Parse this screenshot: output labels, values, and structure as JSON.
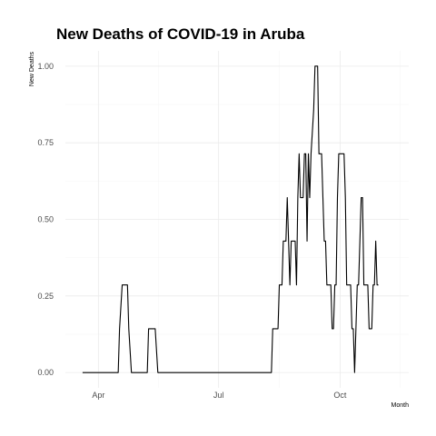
{
  "chart_data": {
    "type": "line",
    "title": "New Deaths of COVID-19 in Aruba",
    "xlabel": "Month",
    "ylabel": "New Deaths",
    "grid": true,
    "legend": "none",
    "line_color": "#000000",
    "xlim": [
      "2020-03-07",
      "2020-11-22"
    ],
    "ylim": [
      -0.05,
      1.05
    ],
    "x_ticks": [
      {
        "value": "2020-04-01",
        "label": "Apr"
      },
      {
        "value": "2020-07-01",
        "label": "Jul"
      },
      {
        "value": "2020-10-01",
        "label": "Oct"
      }
    ],
    "y_ticks": [
      {
        "value": 0,
        "label": "0.00"
      },
      {
        "value": 0.25,
        "label": "0.25"
      },
      {
        "value": 0.5,
        "label": "0.50"
      },
      {
        "value": 0.75,
        "label": "0.75"
      },
      {
        "value": 1,
        "label": "1.00"
      }
    ],
    "series": [
      {
        "points": [
          [
            "2020-03-20",
            0
          ],
          [
            "2020-04-16",
            0
          ],
          [
            "2020-04-17",
            0.143
          ],
          [
            "2020-04-19",
            0.286
          ],
          [
            "2020-04-23",
            0.286
          ],
          [
            "2020-04-24",
            0.143
          ],
          [
            "2020-04-26",
            0
          ],
          [
            "2020-05-08",
            0
          ],
          [
            "2020-05-09",
            0.143
          ],
          [
            "2020-05-14",
            0.143
          ],
          [
            "2020-05-16",
            0
          ],
          [
            "2020-08-10",
            0
          ],
          [
            "2020-08-11",
            0.143
          ],
          [
            "2020-08-15",
            0.143
          ],
          [
            "2020-08-16",
            0.286
          ],
          [
            "2020-08-18",
            0.286
          ],
          [
            "2020-08-19",
            0.429
          ],
          [
            "2020-08-21",
            0.429
          ],
          [
            "2020-08-22",
            0.571
          ],
          [
            "2020-08-23",
            0.429
          ],
          [
            "2020-08-24",
            0.286
          ],
          [
            "2020-08-25",
            0.429
          ],
          [
            "2020-08-28",
            0.429
          ],
          [
            "2020-08-29",
            0.286
          ],
          [
            "2020-08-30",
            0.571
          ],
          [
            "2020-08-31",
            0.714
          ],
          [
            "2020-09-01",
            0.571
          ],
          [
            "2020-09-03",
            0.571
          ],
          [
            "2020-09-04",
            0.714
          ],
          [
            "2020-09-05",
            0.714
          ],
          [
            "2020-09-06",
            0.429
          ],
          [
            "2020-09-07",
            0.714
          ],
          [
            "2020-09-08",
            0.571
          ],
          [
            "2020-09-09",
            0.714
          ],
          [
            "2020-09-11",
            0.857
          ],
          [
            "2020-09-12",
            1
          ],
          [
            "2020-09-14",
            1
          ],
          [
            "2020-09-15",
            0.714
          ],
          [
            "2020-09-17",
            0.714
          ],
          [
            "2020-09-18",
            0.571
          ],
          [
            "2020-09-19",
            0.429
          ],
          [
            "2020-09-20",
            0.429
          ],
          [
            "2020-09-21",
            0.286
          ],
          [
            "2020-09-24",
            0.286
          ],
          [
            "2020-09-25",
            0.143
          ],
          [
            "2020-09-26",
            0.143
          ],
          [
            "2020-09-27",
            0.286
          ],
          [
            "2020-09-28",
            0.286
          ],
          [
            "2020-09-29",
            0.571
          ],
          [
            "2020-09-30",
            0.714
          ],
          [
            "2020-10-04",
            0.714
          ],
          [
            "2020-10-05",
            0.571
          ],
          [
            "2020-10-06",
            0.286
          ],
          [
            "2020-10-09",
            0.286
          ],
          [
            "2020-10-10",
            0.143
          ],
          [
            "2020-10-11",
            0.143
          ],
          [
            "2020-10-12",
            0
          ],
          [
            "2020-10-13",
            0.143
          ],
          [
            "2020-10-14",
            0.286
          ],
          [
            "2020-10-15",
            0.286
          ],
          [
            "2020-10-16",
            0.429
          ],
          [
            "2020-10-17",
            0.571
          ],
          [
            "2020-10-18",
            0.571
          ],
          [
            "2020-10-19",
            0.286
          ],
          [
            "2020-10-22",
            0.286
          ],
          [
            "2020-10-23",
            0.143
          ],
          [
            "2020-10-25",
            0.143
          ],
          [
            "2020-10-26",
            0.286
          ],
          [
            "2020-10-27",
            0.286
          ],
          [
            "2020-10-28",
            0.429
          ],
          [
            "2020-10-29",
            0.286
          ],
          [
            "2020-10-30",
            0.286
          ]
        ]
      }
    ]
  }
}
